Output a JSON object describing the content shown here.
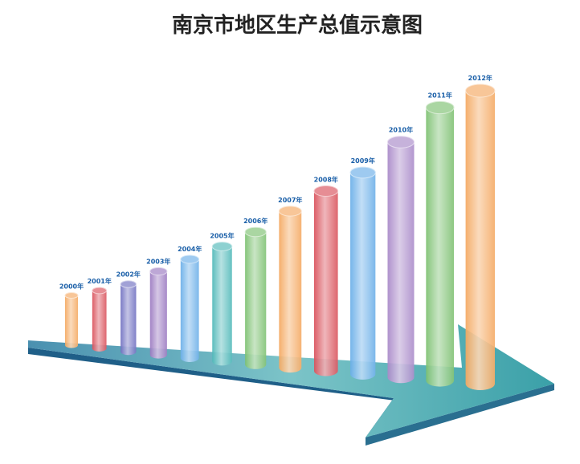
{
  "chart_data": {
    "type": "cylinder",
    "title": "南京市地区生产总值示意图",
    "categories": [
      "2000年",
      "2001年",
      "2002年",
      "2003年",
      "2004年",
      "2005年",
      "2006年",
      "2007年",
      "2008年",
      "2009年",
      "2010年",
      "2011年",
      "2012年"
    ],
    "values": [
      62,
      72,
      84,
      104,
      123,
      143,
      165,
      195,
      224,
      251,
      293,
      340,
      365
    ],
    "colors": [
      "#f4a860",
      "#d9505a",
      "#6f6fc0",
      "#9a78c0",
      "#6aaee8",
      "#4fb8b8",
      "#7cc070",
      "#f4a860",
      "#d9505a",
      "#6aaee8",
      "#a888c8",
      "#7cc070",
      "#f4a860"
    ]
  }
}
